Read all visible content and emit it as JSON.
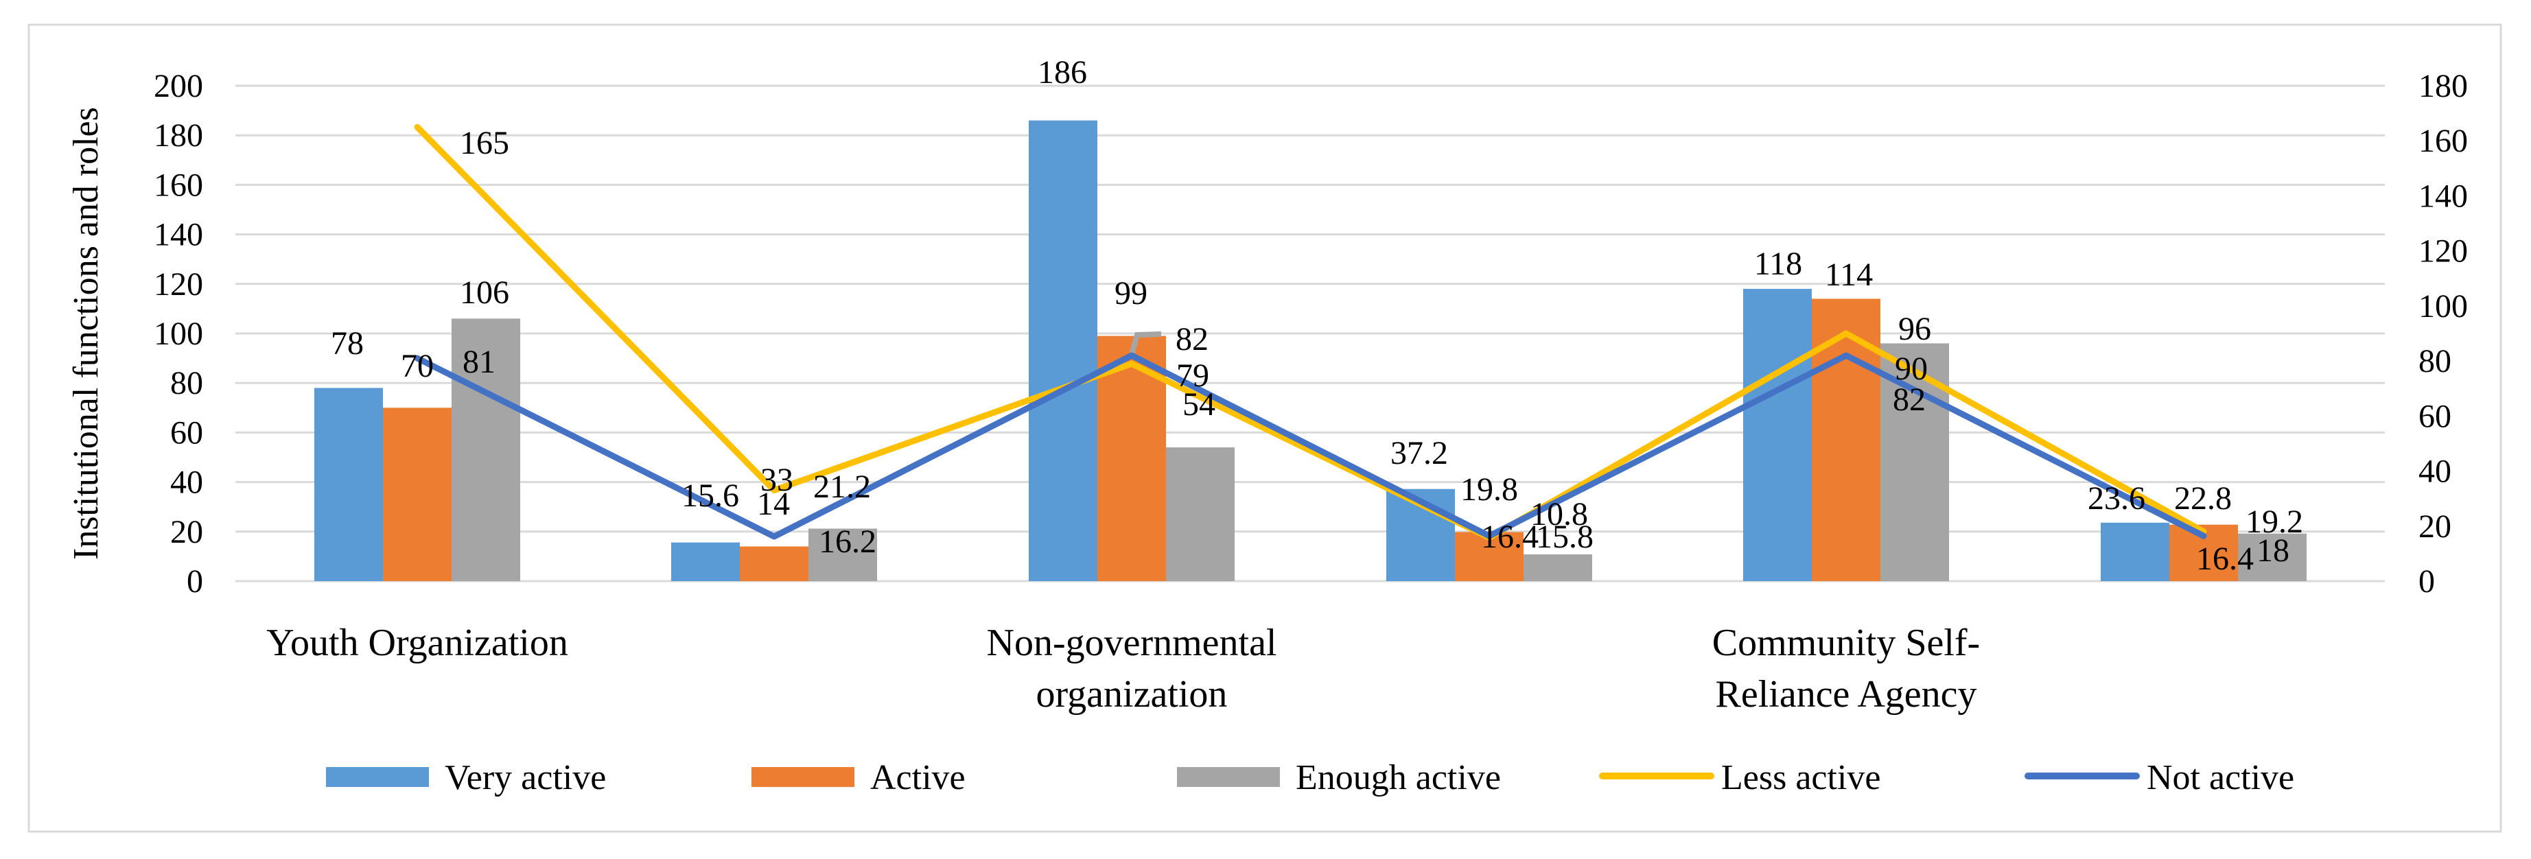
{
  "figure": {
    "background": "#FFFFFF",
    "border_color": "#D9D9D9",
    "gridline_color": "#D9D9D9"
  },
  "chart_data": {
    "type": "combo_bar_line",
    "y_axis_title": "Institutional functions and roles",
    "left_axis": {
      "min": 0,
      "max": 200,
      "step": 20
    },
    "right_axis": {
      "min": 0,
      "max": 180,
      "step": 20
    },
    "gridlines": true,
    "data_labels": true,
    "legend_position": "bottom",
    "category_labels": [
      [
        "Youth Organization"
      ],
      [],
      [
        "Non-governmental",
        "organization"
      ],
      [],
      [
        "Community Self-",
        "Reliance Agency"
      ],
      []
    ],
    "series": [
      {
        "name": "Very active",
        "kind": "bar",
        "axis": "left",
        "color": "#5B9BD5",
        "values": [
          78,
          15.6,
          186,
          37.2,
          118,
          23.6
        ]
      },
      {
        "name": "Active",
        "kind": "bar",
        "axis": "left",
        "color": "#ED7D31",
        "values": [
          70,
          14,
          99,
          19.8,
          114,
          22.8
        ]
      },
      {
        "name": "Enough active",
        "kind": "bar",
        "axis": "left",
        "color": "#A5A5A5",
        "values": [
          106,
          21.2,
          54,
          10.8,
          96,
          19.2
        ]
      },
      {
        "name": "Less active",
        "kind": "line",
        "axis": "right",
        "color": "#FFC000",
        "values": [
          165,
          33,
          79,
          15.8,
          90,
          18
        ]
      },
      {
        "name": "Not active",
        "kind": "line",
        "axis": "right",
        "color": "#4472C4",
        "values": [
          81,
          16.2,
          82,
          16.4,
          82,
          16.4
        ]
      }
    ]
  }
}
